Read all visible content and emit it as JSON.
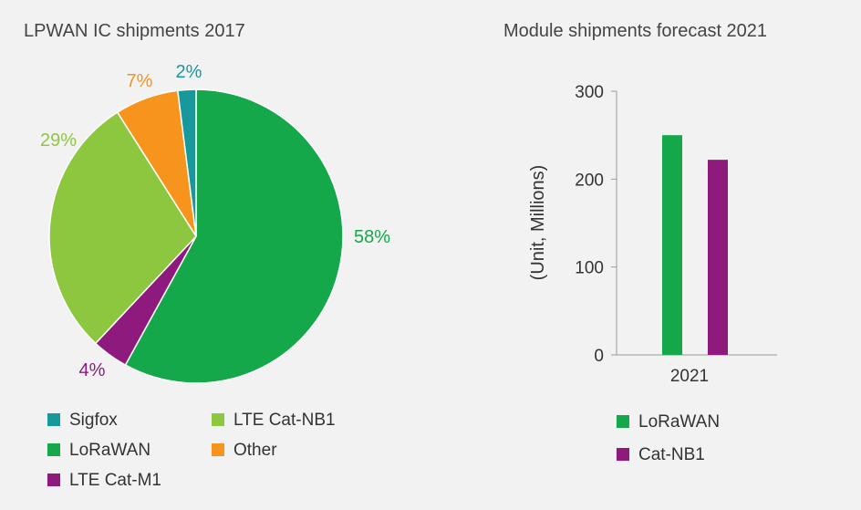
{
  "chart_data": [
    {
      "type": "pie",
      "title": "LPWAN IC shipments 2017",
      "slices": [
        {
          "label": "LoRaWAN",
          "value": 58,
          "display": "58%",
          "color": "#14a84b"
        },
        {
          "label": "LTE Cat-M1",
          "value": 4,
          "display": "4%",
          "color": "#8e1a7e"
        },
        {
          "label": "LTE Cat-NB1",
          "value": 29,
          "display": "29%",
          "color": "#8dc63f"
        },
        {
          "label": "Other",
          "value": 7,
          "display": "7%",
          "color": "#f7941d"
        },
        {
          "label": "Sigfox",
          "value": 2,
          "display": "2%",
          "color": "#17999b"
        }
      ],
      "legend": [
        {
          "label": "Sigfox",
          "color": "#17999b"
        },
        {
          "label": "LTE Cat-NB1",
          "color": "#8dc63f"
        },
        {
          "label": "LoRaWAN",
          "color": "#14a84b"
        },
        {
          "label": "Other",
          "color": "#f7941d"
        },
        {
          "label": "LTE Cat-M1",
          "color": "#8e1a7e"
        }
      ]
    },
    {
      "type": "bar",
      "title": "Module shipments forecast 2021",
      "categories": [
        "2021"
      ],
      "series": [
        {
          "name": "LoRaWAN",
          "values": [
            250
          ],
          "color": "#14a84b"
        },
        {
          "name": "Cat-NB1",
          "values": [
            222
          ],
          "color": "#8e1a7e"
        }
      ],
      "ylabel": "(Unit, Millions)",
      "xlabel": "",
      "ylim": [
        0,
        300
      ],
      "yticks": [
        0,
        100,
        200,
        300
      ],
      "legend_placement": "bottom"
    }
  ]
}
